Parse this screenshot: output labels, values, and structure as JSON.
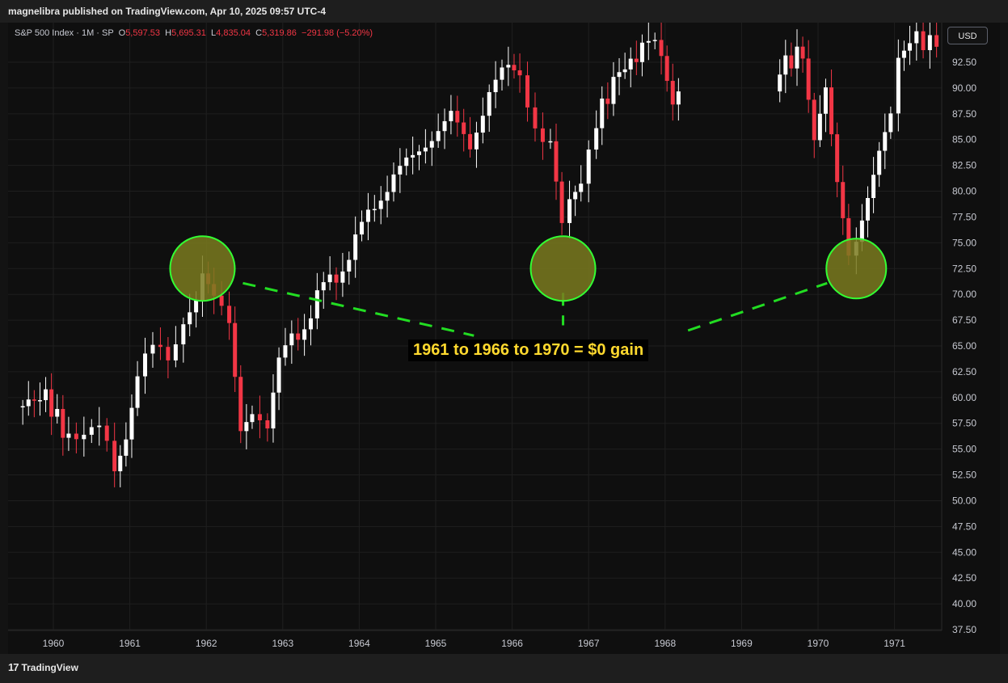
{
  "header": {
    "publisher_line": "magnelibra published on TradingView.com, Apr 10, 2025 09:57 UTC-4"
  },
  "legend": {
    "symbol": "S&P 500 Index · 1M · SP",
    "o_label": "O",
    "o_value": "5,597.53",
    "h_label": "H",
    "h_value": "5,695.31",
    "l_label": "L",
    "l_value": "4,835.04",
    "c_label": "C",
    "c_value": "5,319.86",
    "change": "−291.98 (−5.20%)"
  },
  "currency_button": "USD",
  "annotation_text": "1961 to 1966 to 1970 = $0 gain",
  "footer": {
    "brand": "TradingView"
  },
  "colors": {
    "up": "#ffffff",
    "down": "#f23645",
    "background": "#0f0f0f",
    "grid": "#1f1f1f",
    "highlight_fill": "#7a7a1f",
    "highlight_stroke": "#33ff33",
    "dash_line": "#22dd22",
    "annotation_text": "#ffd92e"
  },
  "chart_data": {
    "type": "candlestick",
    "title": "S&P 500 Index · 1M · SP",
    "x_ticks": [
      "1960",
      "1961",
      "1962",
      "1963",
      "1964",
      "1965",
      "1966",
      "1967",
      "1968",
      "1969",
      "1970",
      "1971"
    ],
    "y_ticks": [
      "92.50",
      "90.00",
      "87.50",
      "85.00",
      "82.50",
      "80.00",
      "77.50",
      "75.00",
      "72.50",
      "70.00",
      "67.50",
      "65.00",
      "62.50",
      "60.00",
      "57.50",
      "55.00",
      "52.50",
      "50.00",
      "47.50",
      "45.00",
      "42.50",
      "40.00",
      "37.50"
    ],
    "ylim": [
      37.0,
      95.0
    ],
    "xlim": [
      1959.5,
      1971.8
    ],
    "currency": "USD",
    "monthly_closes_approx": [
      {
        "x": 1959.6,
        "v": 59.5
      },
      {
        "x": 1959.9,
        "v": 60.0
      },
      {
        "x": 1960.2,
        "v": 56.0
      },
      {
        "x": 1960.4,
        "v": 55.5
      },
      {
        "x": 1960.6,
        "v": 57.0
      },
      {
        "x": 1960.8,
        "v": 53.5
      },
      {
        "x": 1960.95,
        "v": 56.0
      },
      {
        "x": 1961.1,
        "v": 61.5
      },
      {
        "x": 1961.3,
        "v": 65.5
      },
      {
        "x": 1961.5,
        "v": 64.5
      },
      {
        "x": 1961.7,
        "v": 67.5
      },
      {
        "x": 1961.95,
        "v": 71.5
      },
      {
        "x": 1962.1,
        "v": 69.0
      },
      {
        "x": 1962.3,
        "v": 67.0
      },
      {
        "x": 1962.45,
        "v": 56.0
      },
      {
        "x": 1962.6,
        "v": 57.5
      },
      {
        "x": 1962.8,
        "v": 56.5
      },
      {
        "x": 1962.95,
        "v": 63.0
      },
      {
        "x": 1963.2,
        "v": 66.5
      },
      {
        "x": 1963.45,
        "v": 69.5
      },
      {
        "x": 1963.7,
        "v": 72.0
      },
      {
        "x": 1963.95,
        "v": 75.0
      },
      {
        "x": 1964.2,
        "v": 79.0
      },
      {
        "x": 1964.45,
        "v": 81.0
      },
      {
        "x": 1964.7,
        "v": 84.0
      },
      {
        "x": 1964.95,
        "v": 84.5
      },
      {
        "x": 1965.2,
        "v": 88.0
      },
      {
        "x": 1965.45,
        "v": 84.0
      },
      {
        "x": 1965.7,
        "v": 89.5
      },
      {
        "x": 1965.95,
        "v": 92.5
      },
      {
        "x": 1966.1,
        "v": 92.0
      },
      {
        "x": 1966.3,
        "v": 86.0
      },
      {
        "x": 1966.5,
        "v": 84.0
      },
      {
        "x": 1966.65,
        "v": 76.5
      },
      {
        "x": 1966.75,
        "v": 80.0
      },
      {
        "x": 1966.9,
        "v": 81.0
      },
      {
        "x": 1967.1,
        "v": 87.0
      },
      {
        "x": 1967.4,
        "v": 91.5
      },
      {
        "x": 1967.7,
        "v": 93.5
      },
      {
        "x": 1967.95,
        "v": 94.0
      },
      {
        "x": 1968.1,
        "v": 89.0
      },
      {
        "x": 1968.25,
        "v": 91.0
      },
      {
        "x": 1969.5,
        "v": 92.0
      },
      {
        "x": 1969.8,
        "v": 93.5
      },
      {
        "x": 1969.95,
        "v": 85.0
      },
      {
        "x": 1970.1,
        "v": 89.5
      },
      {
        "x": 1970.25,
        "v": 80.0
      },
      {
        "x": 1970.4,
        "v": 73.0
      },
      {
        "x": 1970.5,
        "v": 76.0
      },
      {
        "x": 1970.65,
        "v": 80.0
      },
      {
        "x": 1970.8,
        "v": 84.0
      },
      {
        "x": 1970.95,
        "v": 87.0
      },
      {
        "x": 1971.05,
        "v": 93.0
      },
      {
        "x": 1971.2,
        "v": 95.0
      },
      {
        "x": 1971.55,
        "v": 94.0
      }
    ],
    "highlights": [
      {
        "x": 1961.95,
        "y": 72.5
      },
      {
        "x": 1966.75,
        "y": 72.5
      },
      {
        "x": 1970.5,
        "y": 72.5
      }
    ]
  }
}
